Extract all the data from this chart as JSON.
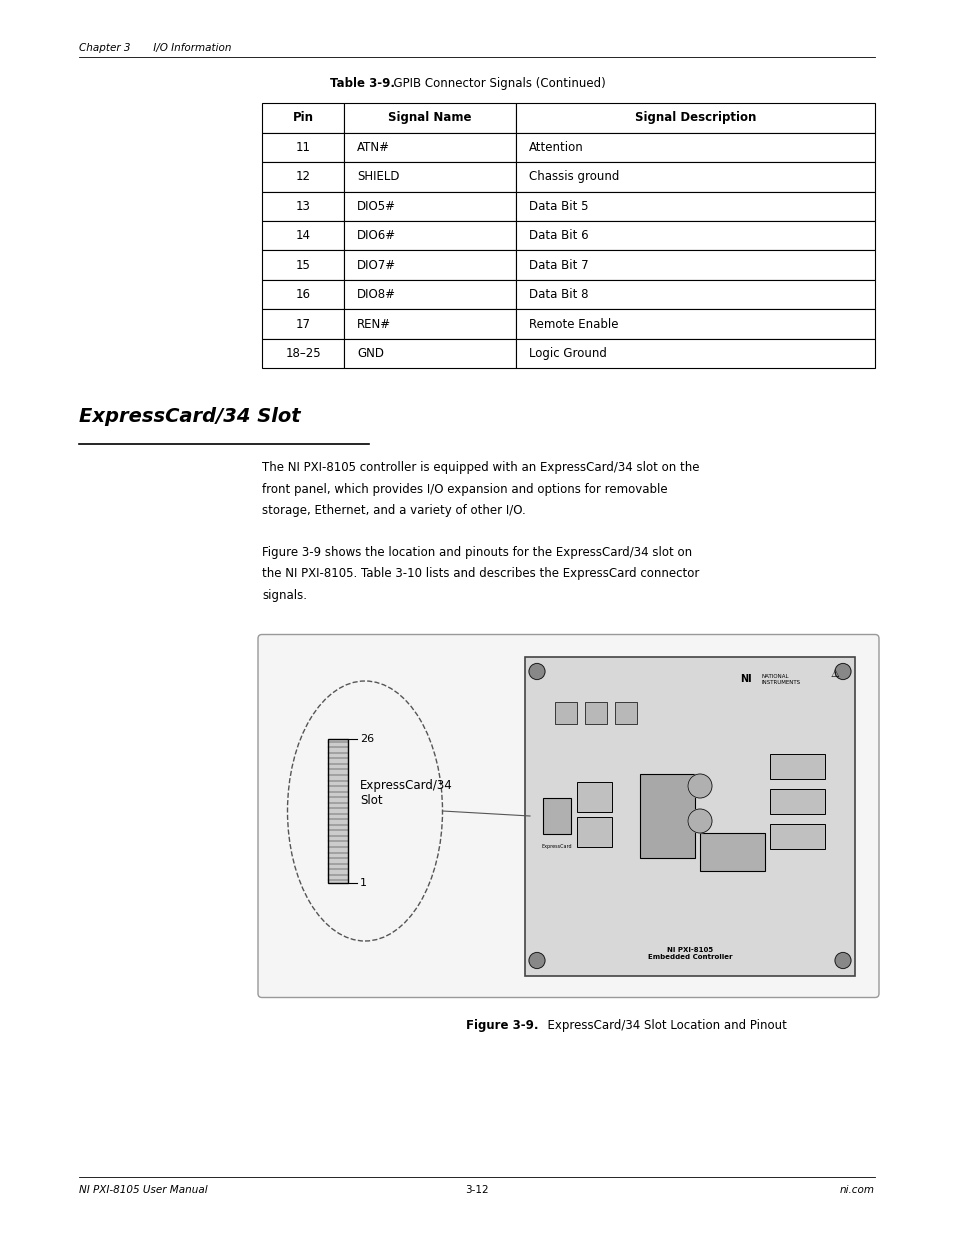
{
  "page_width": 9.54,
  "page_height": 12.35,
  "bg_color": "#ffffff",
  "header_text": "Chapter 3       I/O Information",
  "footer_left": "NI PXI-8105 User Manual",
  "footer_center": "3-12",
  "footer_right": "ni.com",
  "table_title_bold": "Table 3-9.",
  "table_title_normal": "  GPIB Connector Signals (Continued)",
  "table_headers": [
    "Pin",
    "Signal Name",
    "Signal Description"
  ],
  "table_rows": [
    [
      "11",
      "ATN#",
      "Attention"
    ],
    [
      "12",
      "SHIELD",
      "Chassis ground"
    ],
    [
      "13",
      "DIO5#",
      "Data Bit 5"
    ],
    [
      "14",
      "DIO6#",
      "Data Bit 6"
    ],
    [
      "15",
      "DIO7#",
      "Data Bit 7"
    ],
    [
      "16",
      "DIO8#",
      "Data Bit 8"
    ],
    [
      "17",
      "REN#",
      "Remote Enable"
    ],
    [
      "18–25",
      "GND",
      "Logic Ground"
    ]
  ],
  "section_title": "ExpressCard/34 Slot",
  "para1": "The NI PXI-8105 controller is equipped with an ExpressCard/34 slot on the front panel, which provides I/O expansion and options for removable storage, Ethernet, and a variety of other I/O.",
  "para2": "Figure 3-9 shows the location and pinouts for the ExpressCard/34 slot on the NI PXI-8105. Table 3-10 lists and describes the ExpressCard connector signals.",
  "figure_caption_bold": "Figure 3-9.",
  "figure_caption_normal": "  ExpressCard/34 Slot Location and Pinout",
  "fig_label_26": "26",
  "fig_label_1": "1",
  "fig_label_slot": "ExpressCard/34\nSlot"
}
